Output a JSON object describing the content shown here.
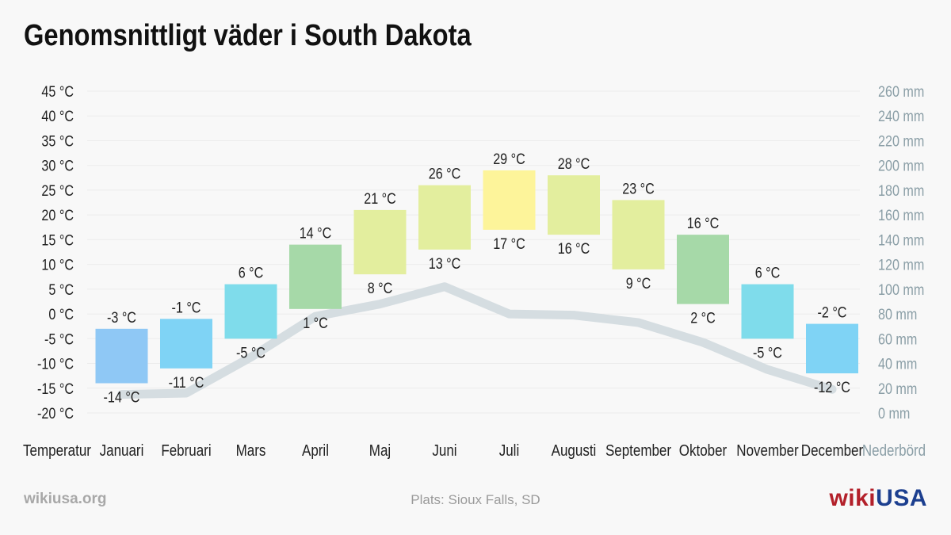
{
  "title": "Genomsnittligt väder i South Dakota",
  "footer": {
    "site": "wikiusa.org",
    "location": "Plats: Sioux Falls, SD",
    "logo_part1": "wiki",
    "logo_part2": "USA"
  },
  "colors": {
    "precip_line": "#d5dde1",
    "bar_cold": "#7fd3f5",
    "bar_coldest": "#8fc8f5",
    "bar_cool": "#7fdceb",
    "bar_mild": "#a6d9a8",
    "bar_warm": "#e3ee9e",
    "bar_hot": "#fdf49a"
  },
  "chart_data": {
    "type": "bar",
    "x_label_left": "Temperatur",
    "x_label_right": "Nederbörd",
    "categories": [
      "Januari",
      "Februari",
      "Mars",
      "April",
      "Maj",
      "Juni",
      "Juli",
      "Augusti",
      "September",
      "Oktober",
      "November",
      "December"
    ],
    "temp_unit": "°C",
    "precip_unit": "mm",
    "temp_axis": {
      "min": -20,
      "max": 45,
      "step": 5
    },
    "precip_axis": {
      "min": 0,
      "max": 260,
      "step": 20
    },
    "series": [
      {
        "values_high": [
          -3,
          -1,
          6,
          14,
          21,
          26,
          29,
          28,
          23,
          16,
          6,
          -2
        ]
      },
      {
        "values_low": [
          -14,
          -11,
          -5,
          1,
          8,
          13,
          17,
          16,
          9,
          2,
          -5,
          -12
        ]
      },
      {
        "precipitation": [
          15,
          16,
          45,
          78,
          88,
          102,
          80,
          79,
          73,
          57,
          35,
          19
        ]
      }
    ],
    "bar_colors": [
      "#8fc8f5",
      "#7fd3f5",
      "#7fdceb",
      "#a6d9a8",
      "#e3ee9e",
      "#e3ee9e",
      "#fdf49a",
      "#e3ee9e",
      "#e3ee9e",
      "#a6d9a8",
      "#7fdceb",
      "#7fd3f5"
    ],
    "grid": true
  }
}
